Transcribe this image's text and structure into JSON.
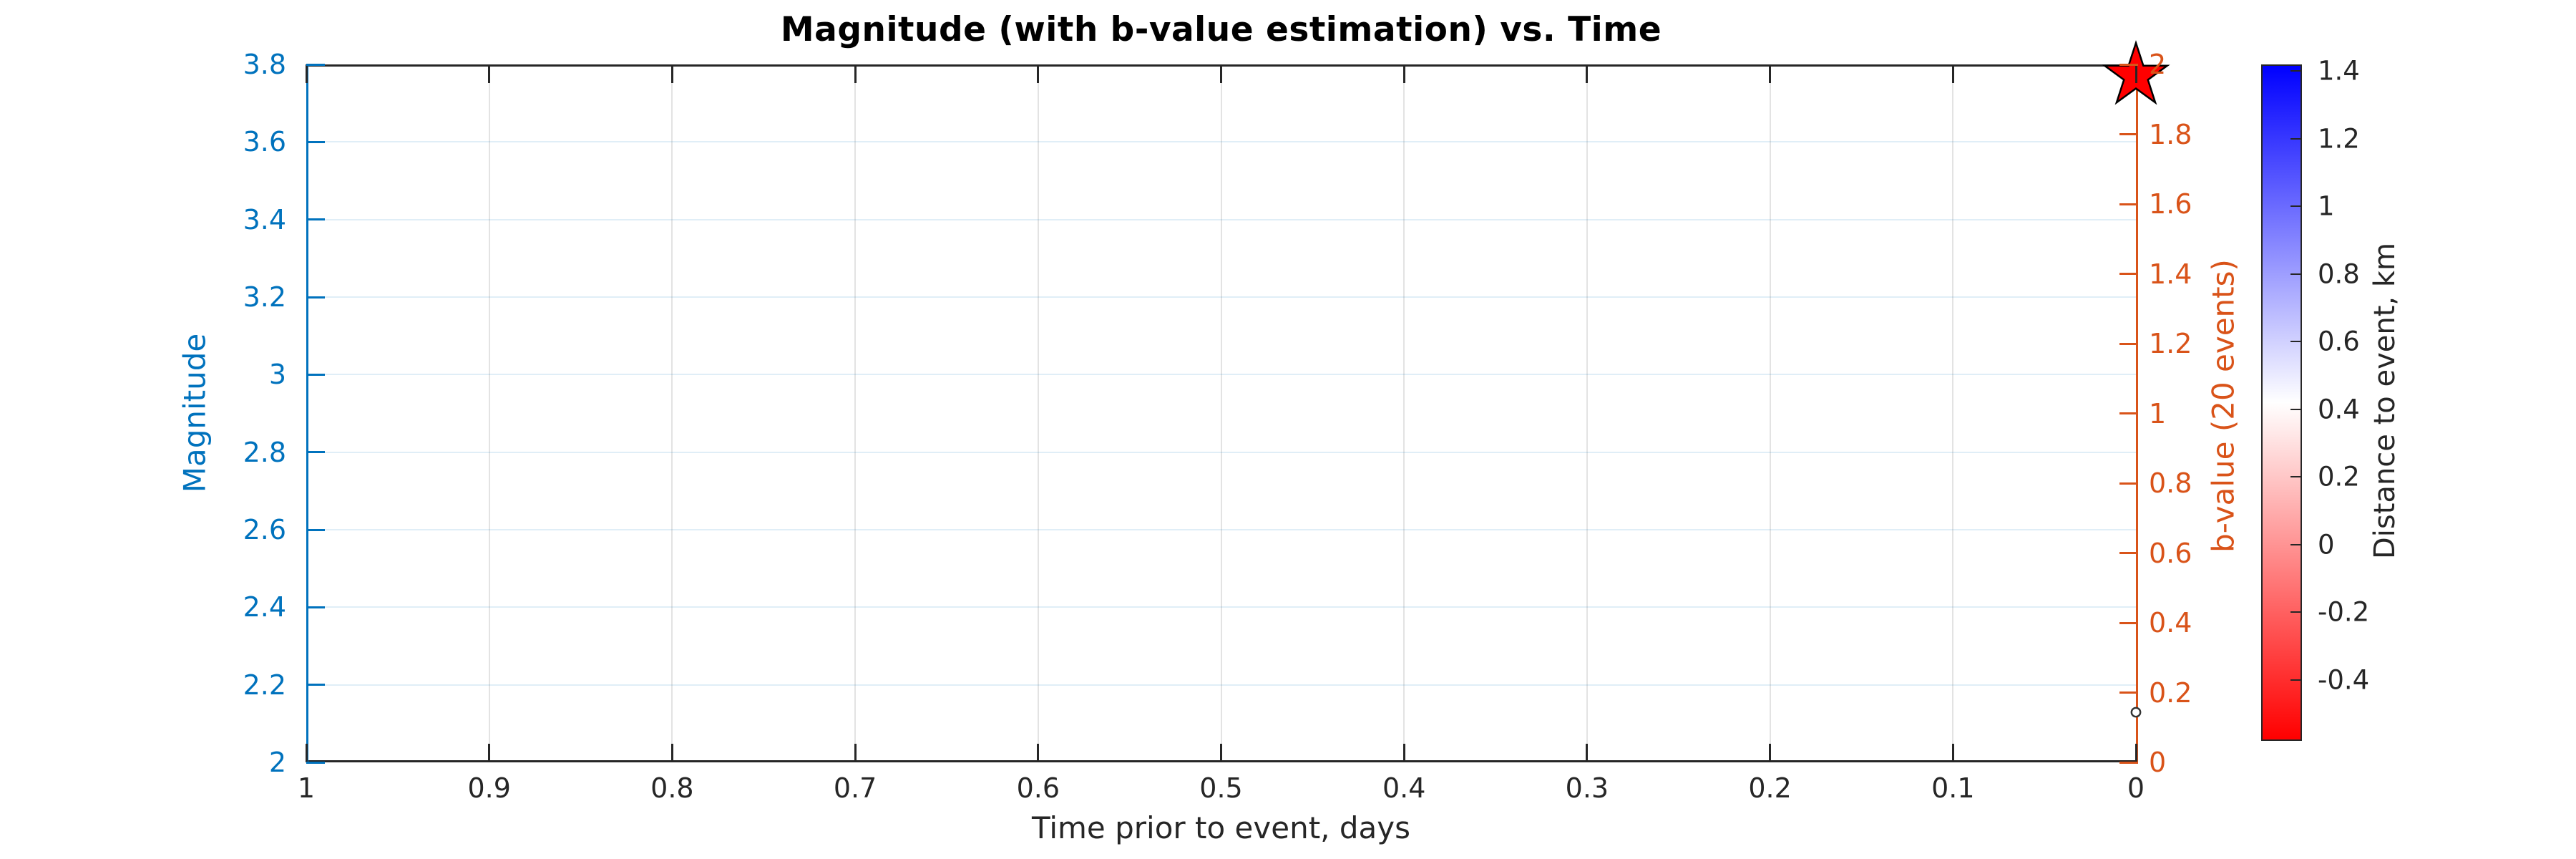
{
  "chart_data": {
    "type": "scatter",
    "title": "Magnitude (with b-value estimation) vs. Time",
    "xlabel": "Time prior to event, days",
    "x_axis": {
      "min": 0,
      "max": 1,
      "direction": "reversed",
      "ticks": [
        "1",
        "0.9",
        "0.8",
        "0.7",
        "0.6",
        "0.5",
        "0.4",
        "0.3",
        "0.2",
        "0.1",
        "0"
      ],
      "color": "#262626"
    },
    "left_axis": {
      "label": "Magnitude",
      "color": "#0072BD",
      "min": 2,
      "max": 3.8,
      "ticks": [
        "2",
        "2.2",
        "2.4",
        "2.6",
        "2.8",
        "3",
        "3.2",
        "3.4",
        "3.6",
        "3.8"
      ]
    },
    "right_axis": {
      "label": "b-value (20 events)",
      "color": "#D95319",
      "min": 0,
      "max": 2,
      "ticks": [
        "0",
        "0.2",
        "0.4",
        "0.6",
        "0.8",
        "1",
        "1.2",
        "1.4",
        "1.6",
        "1.8",
        "2"
      ]
    },
    "colorbar": {
      "label": "Distance to event, km",
      "min": -0.58,
      "max": 1.42,
      "ticks": [
        "1.4",
        "1.2",
        "1",
        "0.8",
        "0.6",
        "0.4",
        "0.2",
        "0",
        "-0.2",
        "-0.4"
      ],
      "gradient": [
        "#0000FF",
        "#FFFFFF",
        "#FF0000"
      ],
      "tick_color": "#262626"
    },
    "grid": true,
    "points": [
      {
        "name": "mainshock-star",
        "time_days": 0,
        "magnitude": 3.77,
        "marker": "pentagram",
        "fill": "#FF0000",
        "edge": "#000000"
      },
      {
        "name": "event-circle",
        "time_days": 0,
        "magnitude": 2.13,
        "marker": "open-circle",
        "fill": "#FFFFFF",
        "edge": "#333333"
      }
    ]
  }
}
